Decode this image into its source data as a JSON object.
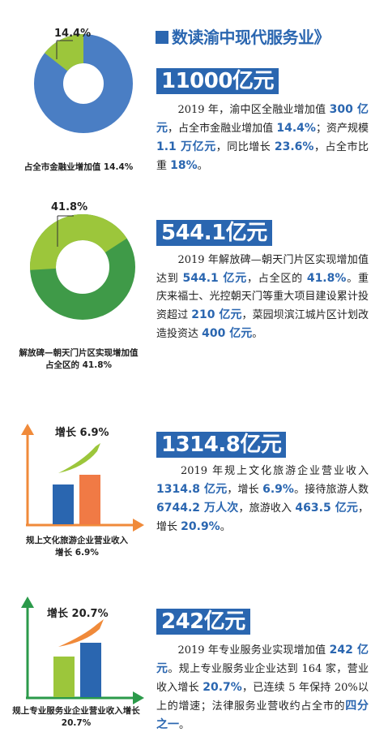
{
  "title": "数读渝中现代服务业》",
  "colors": {
    "blue": "#2a66b0",
    "pie_blue": "#4a7ec4",
    "light_green": "#9cc63b",
    "dark_green": "#3f9a48",
    "orange": "#f08a3a",
    "bar_orange": "#f07a45",
    "arrow_green": "#2b9a4a"
  },
  "sections": [
    {
      "headline": "11000亿元",
      "chart_label": "14.4%",
      "chart_value": 14.4,
      "caption": "占全市金融业增加值 14.4%",
      "p": [
        {
          "t": "　　2019 年，渝中区全融业增加值 "
        },
        {
          "t": "300 亿元",
          "hl": true
        },
        {
          "t": "，占全市金融业增加值 "
        },
        {
          "t": "14.4%",
          "hl": true
        },
        {
          "t": "；资产规模 "
        },
        {
          "t": "1.1 万亿元",
          "hl": true
        },
        {
          "t": "，同比增长 "
        },
        {
          "t": "23.6%",
          "hl": true
        },
        {
          "t": "，占全市比重 "
        },
        {
          "t": "18%",
          "hl": true
        },
        {
          "t": "。"
        }
      ]
    },
    {
      "headline": "544.1亿元",
      "chart_label": "41.8%",
      "chart_value": 41.8,
      "caption": "解放碑—朝天门片区实现增加值占全区的 41.8%",
      "p": [
        {
          "t": "　　2019 年解放碑—朝天门片区实现增加值达到 "
        },
        {
          "t": "544.1 亿元",
          "hl": true
        },
        {
          "t": "，占全区的 "
        },
        {
          "t": "41.8%",
          "hl": true
        },
        {
          "t": "。重庆来福士、光控朝天门等重大项目建设累计投资超过 "
        },
        {
          "t": "210 亿元",
          "hl": true
        },
        {
          "t": "，菜园坝滨江城片区计划改造投资达 "
        },
        {
          "t": "400 亿元",
          "hl": true
        },
        {
          "t": "。"
        }
      ]
    },
    {
      "headline": "1314.8亿元",
      "chart_label": "增长 6.9%",
      "caption": "规上文化旅游企业营业收入增长 6.9%",
      "p": [
        {
          "t": "　　2019 年规上文化旅游企业营业收入 "
        },
        {
          "t": "1314.8 亿元",
          "hl": true
        },
        {
          "t": "，增长 "
        },
        {
          "t": "6.9%",
          "hl": true
        },
        {
          "t": "。接待旅游人数 "
        },
        {
          "t": "6744.2 万人次",
          "hl": true
        },
        {
          "t": "，旅游收入 "
        },
        {
          "t": "463.5 亿元",
          "hl": true
        },
        {
          "t": "，增长 "
        },
        {
          "t": "20.9%",
          "hl": true
        },
        {
          "t": "。"
        }
      ]
    },
    {
      "headline": "242亿元",
      "chart_label": "增长 20.7%",
      "caption": "规上专业服务业企业营业收入增长 20.7%",
      "p": [
        {
          "t": "　　2019 年专业服务业实现增加值 "
        },
        {
          "t": "242 亿元",
          "hl": true
        },
        {
          "t": "。规上专业服务业企业达到 164 家，营业收入增长 "
        },
        {
          "t": "20.7%",
          "hl": true
        },
        {
          "t": "，已连续 5 年保持 20%以上的增速；法律服务业营收约占全市的"
        },
        {
          "t": "四分之一",
          "hl": true
        },
        {
          "t": "。"
        }
      ]
    }
  ]
}
